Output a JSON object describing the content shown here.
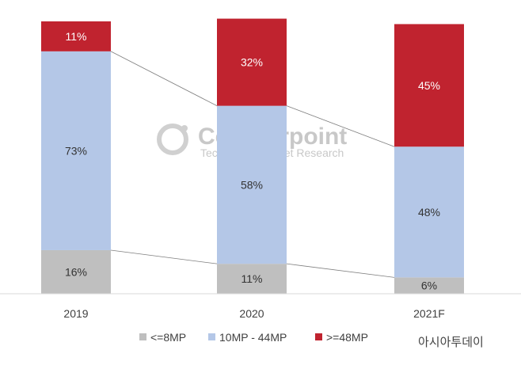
{
  "chart_data": {
    "type": "bar",
    "stacked": true,
    "percent_stacked": true,
    "categories": [
      "2019",
      "2020",
      "2021F"
    ],
    "series": [
      {
        "name": "<=8MP",
        "values": [
          16,
          11,
          6
        ],
        "color": "#bfbfbf"
      },
      {
        "name": "10MP - 44MP",
        "values": [
          73,
          58,
          48
        ],
        "color": "#b4c7e7"
      },
      {
        "name": ">=48MP",
        "values": [
          11,
          32,
          45
        ],
        "color": "#c0232f"
      }
    ],
    "data_labels": [
      [
        "16%",
        "11%",
        "6%"
      ],
      [
        "73%",
        "58%",
        "48%"
      ],
      [
        "11%",
        "32%",
        "45%"
      ]
    ],
    "label_colors": [
      "#333333",
      "#333333",
      "#ffffff"
    ],
    "ylim": [
      0,
      100
    ],
    "series_lines": true,
    "legend_position": "bottom",
    "grid": false
  },
  "watermark": {
    "title": "Counterpoint",
    "subtitle": "Technology Market Research"
  },
  "source_mark": "아시아투데이"
}
